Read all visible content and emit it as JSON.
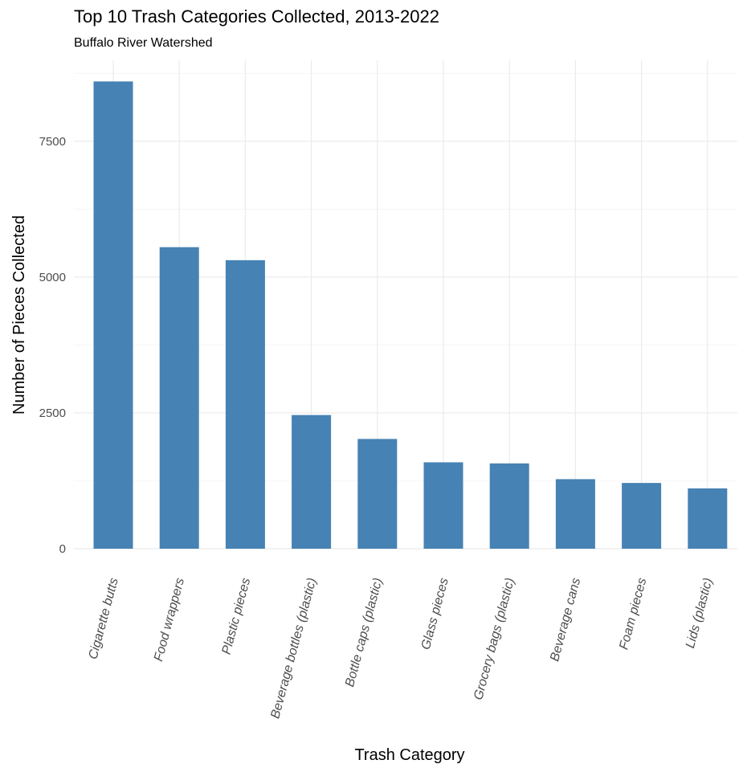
{
  "chart_data": {
    "type": "bar",
    "title": "Top 10 Trash Categories Collected, 2013-2022",
    "subtitle": "Buffalo River Watershed",
    "xlabel": "Trash Category",
    "ylabel": "Number of Pieces Collected",
    "categories": [
      "Cigarette butts",
      "Food wrappers",
      "Plastic pieces",
      "Beverage bottles (plastic)",
      "Bottle caps (plastic)",
      "Glass pieces",
      "Grocery bags (plastic)",
      "Beverage cans",
      "Foam pieces",
      "Lids (plastic)"
    ],
    "values": [
      8600,
      5550,
      5310,
      2460,
      2020,
      1590,
      1570,
      1280,
      1210,
      1110
    ],
    "ylim": [
      0,
      8900
    ],
    "yticks": [
      0,
      2500,
      5000,
      7500
    ],
    "ytick_labels": [
      "0",
      "2500",
      "5000",
      "7500"
    ],
    "bar_color": "#4682B4",
    "grid": true,
    "legend": "none"
  }
}
